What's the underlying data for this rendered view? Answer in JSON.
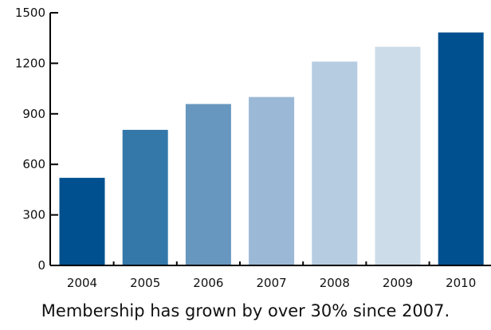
{
  "chart_data": {
    "type": "bar",
    "categories": [
      "2004",
      "2005",
      "2006",
      "2007",
      "2008",
      "2009",
      "2010"
    ],
    "values": [
      520,
      805,
      958,
      1000,
      1210,
      1298,
      1383
    ],
    "colors": [
      "#00508f",
      "#3478aa",
      "#6797bf",
      "#9bb9d6",
      "#b6cce1",
      "#ccdce9",
      "#00508f"
    ],
    "y_ticks": [
      0,
      300,
      600,
      900,
      1200,
      1500
    ],
    "ylim": [
      0,
      1500
    ],
    "title": "",
    "xlabel": "",
    "ylabel": "",
    "grid": false,
    "caption": "Membership has grown by over 30% since 2007."
  }
}
